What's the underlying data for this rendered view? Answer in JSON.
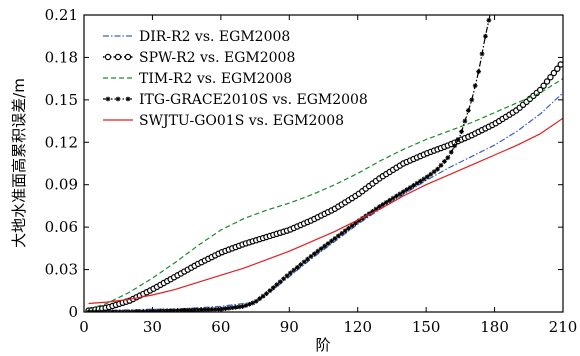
{
  "chart_data": {
    "type": "line",
    "xlabel": "阶",
    "ylabel": "大地水准面高累积误差/m",
    "xlim": [
      0,
      210
    ],
    "ylim": [
      0,
      0.21
    ],
    "xticks": [
      0,
      30,
      60,
      90,
      120,
      150,
      180,
      210
    ],
    "yticks": [
      0,
      0.03,
      0.06,
      0.09,
      0.12,
      0.15,
      0.18,
      0.21
    ],
    "xtick_labels": [
      "0",
      "30",
      "60",
      "90",
      "120",
      "150",
      "180",
      "210"
    ],
    "ytick_labels": [
      "0",
      "0.03",
      "0.06",
      "0.09",
      "0.12",
      "0.15",
      "0.18",
      "0.21"
    ],
    "grid": false,
    "legend_position": "top-left",
    "series": [
      {
        "name": "DIR-R2 vs. EGM2008",
        "color": "#3a5fc8",
        "dash": "dashdot",
        "marker": "none",
        "x": [
          2,
          10,
          20,
          30,
          40,
          50,
          60,
          70,
          75,
          80,
          90,
          100,
          110,
          120,
          130,
          140,
          150,
          160,
          170,
          180,
          190,
          200,
          210
        ],
        "y": [
          0.001,
          0.001,
          0.0015,
          0.002,
          0.002,
          0.003,
          0.004,
          0.006,
          0.007,
          0.012,
          0.025,
          0.038,
          0.05,
          0.062,
          0.073,
          0.083,
          0.093,
          0.102,
          0.11,
          0.118,
          0.128,
          0.14,
          0.155
        ]
      },
      {
        "name": "SPW-R2 vs. EGM2008",
        "color": "#000000",
        "dash": "dotted",
        "marker": "circle",
        "x": [
          2,
          10,
          20,
          30,
          40,
          50,
          60,
          70,
          80,
          90,
          100,
          110,
          120,
          130,
          140,
          150,
          160,
          170,
          180,
          190,
          200,
          210
        ],
        "y": [
          0.001,
          0.003,
          0.008,
          0.016,
          0.025,
          0.034,
          0.042,
          0.048,
          0.053,
          0.058,
          0.065,
          0.073,
          0.083,
          0.095,
          0.105,
          0.112,
          0.118,
          0.125,
          0.133,
          0.143,
          0.157,
          0.177
        ]
      },
      {
        "name": "TIM-R2 vs. EGM2008",
        "color": "#1a8a2a",
        "dash": "dashed",
        "marker": "none",
        "x": [
          2,
          10,
          20,
          30,
          40,
          50,
          60,
          70,
          80,
          90,
          100,
          110,
          120,
          130,
          140,
          150,
          160,
          170,
          180,
          190,
          200,
          210
        ],
        "y": [
          0.002,
          0.006,
          0.014,
          0.024,
          0.035,
          0.047,
          0.058,
          0.066,
          0.072,
          0.077,
          0.083,
          0.09,
          0.098,
          0.107,
          0.115,
          0.122,
          0.128,
          0.134,
          0.141,
          0.148,
          0.155,
          0.165
        ]
      },
      {
        "name": "ITG-GRACE2010S vs. EGM2008",
        "color": "#000000",
        "dash": "dashdot",
        "marker": "star",
        "x": [
          2,
          20,
          40,
          60,
          70,
          75,
          80,
          90,
          100,
          110,
          120,
          130,
          140,
          150,
          155,
          160,
          165,
          170,
          173,
          176,
          178,
          180
        ],
        "y": [
          0.0,
          0.0,
          0.001,
          0.002,
          0.004,
          0.007,
          0.013,
          0.027,
          0.04,
          0.052,
          0.064,
          0.075,
          0.085,
          0.095,
          0.101,
          0.11,
          0.125,
          0.15,
          0.17,
          0.195,
          0.21,
          0.215
        ]
      },
      {
        "name": "SWJTU-GO01S vs. EGM2008",
        "color": "#e02020",
        "dash": "solid",
        "marker": "none",
        "x": [
          2,
          10,
          20,
          30,
          40,
          50,
          60,
          70,
          80,
          90,
          100,
          110,
          120,
          130,
          140,
          150,
          160,
          170,
          180,
          190,
          200,
          210
        ],
        "y": [
          0.006,
          0.007,
          0.009,
          0.012,
          0.016,
          0.021,
          0.026,
          0.031,
          0.037,
          0.043,
          0.05,
          0.057,
          0.065,
          0.073,
          0.082,
          0.09,
          0.097,
          0.104,
          0.111,
          0.118,
          0.126,
          0.137
        ]
      }
    ]
  }
}
